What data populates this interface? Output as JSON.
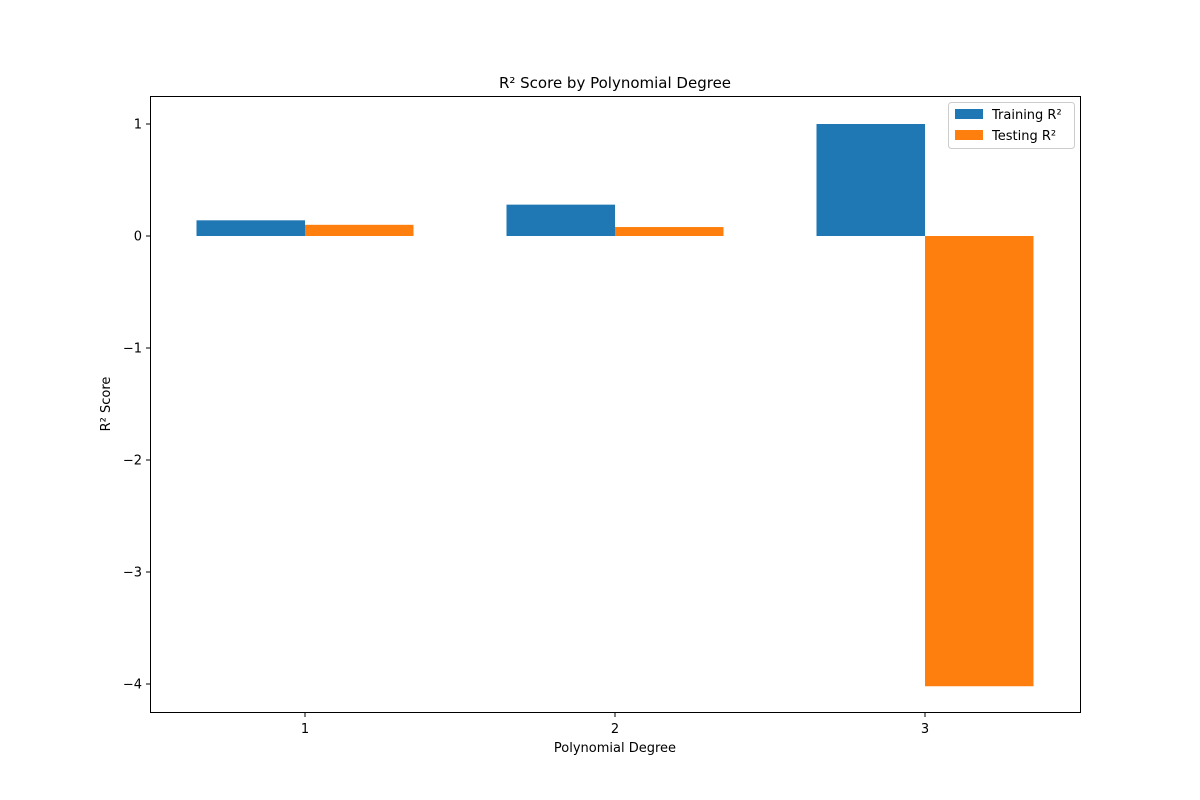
{
  "chart_data": {
    "type": "bar",
    "title": "R² Score by Polynomial Degree",
    "xlabel": "Polynomial Degree",
    "ylabel": "R² Score",
    "categories": [
      "1",
      "2",
      "3"
    ],
    "series": [
      {
        "name": "Training R²",
        "color": "#1f77b4",
        "values": [
          0.14,
          0.28,
          1.0
        ]
      },
      {
        "name": "Testing R²",
        "color": "#ff7f0e",
        "values": [
          0.1,
          0.08,
          -4.02
        ]
      }
    ],
    "ylim": [
      -4.25,
      1.25
    ],
    "yticks": [
      1,
      0,
      -1,
      -2,
      -3,
      -4
    ],
    "ytick_labels": [
      "1",
      "0",
      "−1",
      "−2",
      "−3",
      "−4"
    ],
    "grid": false,
    "legend_position": "top-right"
  }
}
